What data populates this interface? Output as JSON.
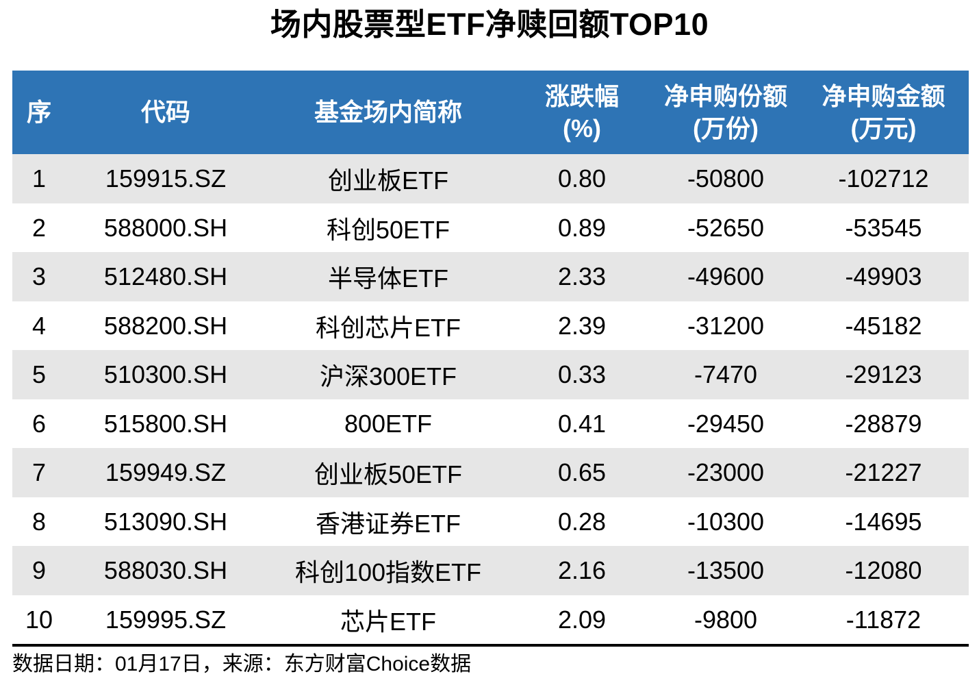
{
  "title": "场内股票型ETF净赎回额TOP10",
  "colors": {
    "header_bg": "#2E74B5",
    "header_text": "#FFFFFF",
    "row_alt_bg": "#E6E6E6",
    "body_text": "#000000",
    "rule_black": "#000000"
  },
  "footer": {
    "source_note": "数据日期：01月17日，来源：东方财富Choice数据"
  },
  "chart_data": {
    "type": "table",
    "title": "场内股票型ETF净赎回额TOP10",
    "columns": [
      {
        "label": "序",
        "sublabel": ""
      },
      {
        "label": "代码",
        "sublabel": ""
      },
      {
        "label": "基金场内简称",
        "sublabel": ""
      },
      {
        "label": "涨跌幅",
        "sublabel": "(%)"
      },
      {
        "label": "净申购份额",
        "sublabel": "(万份)"
      },
      {
        "label": "净申购金额",
        "sublabel": "(万元)"
      }
    ],
    "rows": [
      {
        "rank": "1",
        "code": "159915.SZ",
        "name": "创业板ETF",
        "change": "0.80",
        "shares": "-50800",
        "amount": "-102712"
      },
      {
        "rank": "2",
        "code": "588000.SH",
        "name": "科创50ETF",
        "change": "0.89",
        "shares": "-52650",
        "amount": "-53545"
      },
      {
        "rank": "3",
        "code": "512480.SH",
        "name": "半导体ETF",
        "change": "2.33",
        "shares": "-49600",
        "amount": "-49903"
      },
      {
        "rank": "4",
        "code": "588200.SH",
        "name": "科创芯片ETF",
        "change": "2.39",
        "shares": "-31200",
        "amount": "-45182"
      },
      {
        "rank": "5",
        "code": "510300.SH",
        "name": "沪深300ETF",
        "change": "0.33",
        "shares": "-7470",
        "amount": "-29123"
      },
      {
        "rank": "6",
        "code": "515800.SH",
        "name": "800ETF",
        "change": "0.41",
        "shares": "-29450",
        "amount": "-28879"
      },
      {
        "rank": "7",
        "code": "159949.SZ",
        "name": "创业板50ETF",
        "change": "0.65",
        "shares": "-23000",
        "amount": "-21227"
      },
      {
        "rank": "8",
        "code": "513090.SH",
        "name": "香港证券ETF",
        "change": "0.28",
        "shares": "-10300",
        "amount": "-14695"
      },
      {
        "rank": "9",
        "code": "588030.SH",
        "name": "科创100指数ETF",
        "change": "2.16",
        "shares": "-13500",
        "amount": "-12080"
      },
      {
        "rank": "10",
        "code": "159995.SZ",
        "name": "芯片ETF",
        "change": "2.09",
        "shares": "-9800",
        "amount": "-11872"
      }
    ],
    "source_note": "数据日期：01月17日，来源：东方财富Choice数据"
  }
}
